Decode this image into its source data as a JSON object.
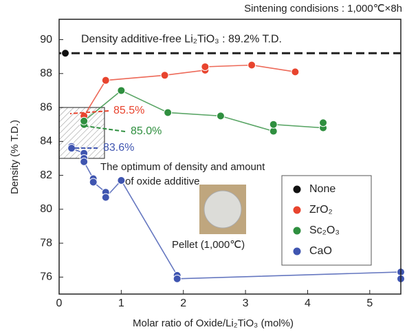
{
  "chart_data": {
    "type": "scatter",
    "title": "Sintening condisions : 1,000℃×8h",
    "x_label": "Molar ratio of Oxide/Li₂TiO₃ (mol%)",
    "y_label": "Density (% T.D.)",
    "xlim": [
      0,
      5.5
    ],
    "ylim": [
      75,
      91.2
    ],
    "xticks": [
      0,
      1,
      2,
      3,
      4,
      5
    ],
    "yticks": [
      76,
      78,
      80,
      82,
      84,
      86,
      88,
      90
    ],
    "reference_line": {
      "value": 89.2,
      "label": "Density additive-free Li₂TiO₃ : 89.2% T.D."
    },
    "highlight_box": {
      "x": [
        0,
        0.73
      ],
      "y": [
        83,
        86
      ],
      "label": "The optimum of density and amount of oxide additive"
    },
    "inset_label": "Pellet (1,000℃)",
    "series": [
      {
        "name": "None",
        "color": "#111111",
        "x": [
          0.1
        ],
        "values": [
          89.2
        ]
      },
      {
        "name": "ZrO₂",
        "color": "#e8442e",
        "x": [
          0.4,
          0.75,
          1.7,
          2.35,
          2.35,
          3.1,
          3.8
        ],
        "values": [
          85.5,
          87.6,
          87.9,
          88.2,
          88.4,
          88.5,
          88.1
        ]
      },
      {
        "name": "Sc₂O₃",
        "color": "#2f8f3f",
        "x": [
          0.4,
          0.4,
          1.0,
          1.75,
          2.6,
          3.45,
          3.45,
          4.25,
          4.25
        ],
        "values": [
          85.0,
          85.2,
          87.0,
          85.7,
          85.5,
          84.6,
          85.0,
          84.8,
          85.1
        ]
      },
      {
        "name": "CaO",
        "color": "#3f55b0",
        "x": [
          0.2,
          0.2,
          0.4,
          0.4,
          0.4,
          0.55,
          0.55,
          0.75,
          0.75,
          1.0,
          1.9,
          1.9,
          5.5,
          5.5
        ],
        "values": [
          83.7,
          83.6,
          83.3,
          83.0,
          82.8,
          81.8,
          81.6,
          81.0,
          80.7,
          81.7,
          76.1,
          75.9,
          76.3,
          75.9
        ]
      }
    ],
    "annotations": [
      {
        "text": "85.5%",
        "color": "#e8442e"
      },
      {
        "text": "85.0%",
        "color": "#2f8f3f"
      },
      {
        "text": "83.6%",
        "color": "#3f55b0"
      }
    ]
  }
}
